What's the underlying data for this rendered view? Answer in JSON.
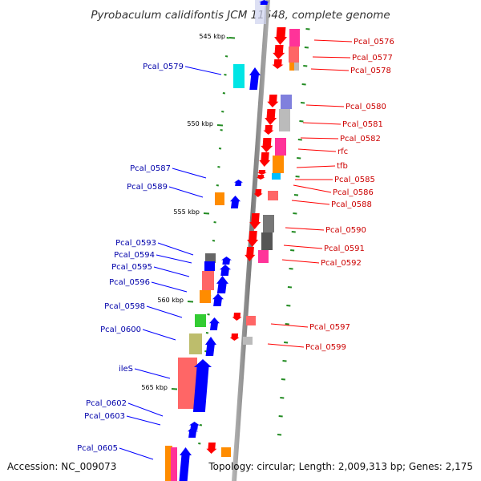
{
  "title": "Pyrobaculum calidifontis JCM 11548, complete genome",
  "footer": {
    "accession": "Accession: NC_009073",
    "summary": "Topology: circular; Length: 2,009,313 bp; Genes: 2,175"
  },
  "colors": {
    "forward": "#ff0000",
    "reverse": "#0000ff",
    "forward_label": "#cc0000",
    "reverse_label": "#0000aa",
    "tick": "#228b22",
    "backbone": "#8a8a8a"
  },
  "scale_marks": [
    {
      "label": "545 kbp"
    },
    {
      "label": "550 kbp"
    },
    {
      "label": "555 kbp"
    },
    {
      "label": "560 kbp"
    },
    {
      "label": "565 kbp"
    }
  ],
  "forward_genes": [
    {
      "label": "Pcal_0576"
    },
    {
      "label": "Pcal_0577"
    },
    {
      "label": "Pcal_0578"
    },
    {
      "label": "Pcal_0580"
    },
    {
      "label": "Pcal_0581"
    },
    {
      "label": "Pcal_0582"
    },
    {
      "label": "rfc"
    },
    {
      "label": "tfb"
    },
    {
      "label": "Pcal_0585"
    },
    {
      "label": "Pcal_0586"
    },
    {
      "label": "Pcal_0588"
    },
    {
      "label": "Pcal_0590"
    },
    {
      "label": "Pcal_0591"
    },
    {
      "label": "Pcal_0592"
    },
    {
      "label": "Pcal_0597"
    },
    {
      "label": "Pcal_0599"
    }
  ],
  "reverse_genes": [
    {
      "label": "Pcal_0579"
    },
    {
      "label": "Pcal_0587"
    },
    {
      "label": "Pcal_0589"
    },
    {
      "label": "Pcal_0593"
    },
    {
      "label": "Pcal_0594"
    },
    {
      "label": "Pcal_0595"
    },
    {
      "label": "Pcal_0596"
    },
    {
      "label": "Pcal_0598"
    },
    {
      "label": "Pcal_0600"
    },
    {
      "label": "ileS"
    },
    {
      "label": "Pcal_0602"
    },
    {
      "label": "Pcal_0603"
    },
    {
      "label": "Pcal_0605"
    }
  ]
}
